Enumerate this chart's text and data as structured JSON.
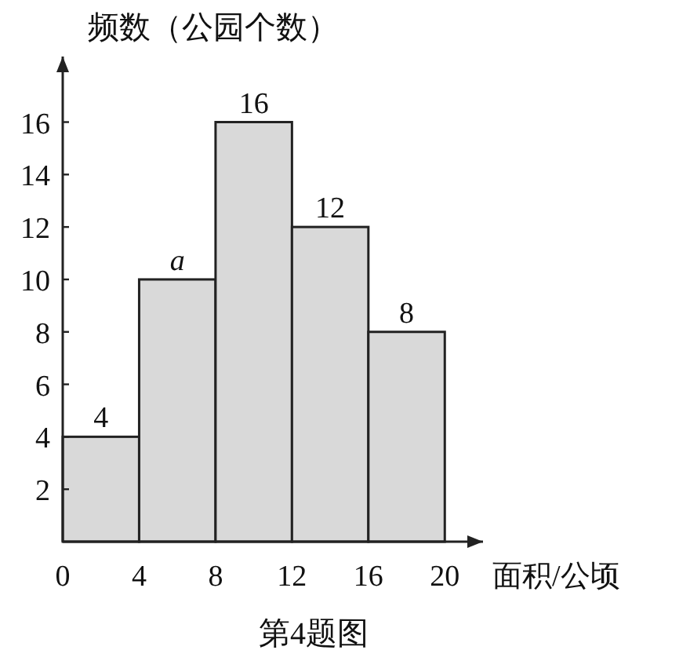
{
  "chart_data": {
    "type": "histogram",
    "ylabel": "频数（公园个数）",
    "xlabel": "面积/公顷",
    "annotations": [
      "第4题图"
    ],
    "bins": [
      0,
      4,
      8,
      12,
      16,
      20
    ],
    "values": [
      4,
      10,
      16,
      12,
      8
    ],
    "value_labels": [
      "4",
      "a",
      "16",
      "12",
      "8"
    ],
    "color": "#d9d9d9",
    "xlim": [
      0,
      22
    ],
    "xticks": [
      0,
      4,
      8,
      12,
      16,
      20
    ],
    "ylim": [
      0,
      18.5
    ],
    "yticks": [
      2,
      4,
      6,
      8,
      10,
      12,
      14,
      16
    ]
  }
}
